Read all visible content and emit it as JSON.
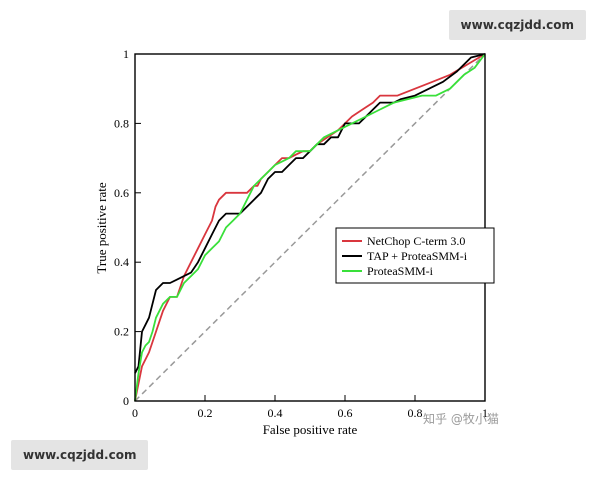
{
  "watermarks": {
    "top": "www.cqzjdd.com",
    "bottom": "www.cqzjdd.com"
  },
  "credit": "知乎 @牧小猫",
  "chart_data": {
    "type": "line",
    "xlabel": "False positive rate",
    "ylabel": "True positive rate",
    "xlim": [
      0,
      1
    ],
    "ylim": [
      0,
      1
    ],
    "xticks": [
      "0",
      "0.2",
      "0.4",
      "0.6",
      "0.8",
      "1"
    ],
    "yticks": [
      "0",
      "0.2",
      "0.4",
      "0.6",
      "0.8",
      "1"
    ],
    "grid": false,
    "legend_position": "center-right",
    "reference_line": {
      "style": "dashed",
      "color": "#999999",
      "from": [
        0,
        0
      ],
      "to": [
        1,
        1
      ]
    },
    "series": [
      {
        "name": "NetChop C-term 3.0",
        "color": "#d9363e",
        "x": [
          0,
          0.01,
          0.02,
          0.04,
          0.06,
          0.08,
          0.1,
          0.12,
          0.14,
          0.16,
          0.18,
          0.2,
          0.22,
          0.23,
          0.24,
          0.26,
          0.28,
          0.32,
          0.34,
          0.35,
          0.36,
          0.38,
          0.4,
          0.42,
          0.44,
          0.46,
          0.48,
          0.5,
          0.52,
          0.55,
          0.58,
          0.6,
          0.62,
          0.65,
          0.68,
          0.7,
          0.72,
          0.75,
          0.8,
          0.85,
          0.9,
          0.95,
          1
        ],
        "y": [
          0,
          0.05,
          0.1,
          0.14,
          0.2,
          0.26,
          0.3,
          0.3,
          0.36,
          0.4,
          0.44,
          0.48,
          0.52,
          0.56,
          0.58,
          0.6,
          0.6,
          0.6,
          0.62,
          0.62,
          0.64,
          0.66,
          0.68,
          0.7,
          0.7,
          0.71,
          0.72,
          0.72,
          0.74,
          0.76,
          0.78,
          0.8,
          0.82,
          0.84,
          0.86,
          0.88,
          0.88,
          0.88,
          0.9,
          0.92,
          0.94,
          0.97,
          1
        ]
      },
      {
        "name": "TAP + ProteaSMM-i",
        "color": "#000000",
        "x": [
          0,
          0.01,
          0.02,
          0.03,
          0.04,
          0.05,
          0.06,
          0.08,
          0.1,
          0.12,
          0.14,
          0.16,
          0.18,
          0.2,
          0.22,
          0.24,
          0.26,
          0.28,
          0.3,
          0.32,
          0.34,
          0.36,
          0.38,
          0.4,
          0.42,
          0.44,
          0.46,
          0.48,
          0.5,
          0.52,
          0.54,
          0.56,
          0.58,
          0.6,
          0.62,
          0.64,
          0.66,
          0.68,
          0.7,
          0.72,
          0.74,
          0.76,
          0.8,
          0.84,
          0.88,
          0.92,
          0.96,
          1
        ],
        "y": [
          0.08,
          0.1,
          0.2,
          0.22,
          0.24,
          0.28,
          0.32,
          0.34,
          0.34,
          0.35,
          0.36,
          0.37,
          0.4,
          0.44,
          0.48,
          0.52,
          0.54,
          0.54,
          0.54,
          0.56,
          0.58,
          0.6,
          0.64,
          0.66,
          0.66,
          0.68,
          0.7,
          0.7,
          0.72,
          0.74,
          0.74,
          0.76,
          0.76,
          0.8,
          0.8,
          0.8,
          0.82,
          0.84,
          0.86,
          0.86,
          0.86,
          0.87,
          0.88,
          0.9,
          0.92,
          0.95,
          0.99,
          1
        ]
      },
      {
        "name": "ProteaSMM-i",
        "color": "#39e03a",
        "x": [
          0,
          0.01,
          0.02,
          0.03,
          0.04,
          0.05,
          0.06,
          0.08,
          0.1,
          0.12,
          0.14,
          0.16,
          0.18,
          0.2,
          0.22,
          0.24,
          0.26,
          0.28,
          0.3,
          0.32,
          0.34,
          0.36,
          0.38,
          0.4,
          0.42,
          0.44,
          0.46,
          0.5,
          0.54,
          0.58,
          0.62,
          0.66,
          0.7,
          0.74,
          0.78,
          0.82,
          0.86,
          0.9,
          0.94,
          0.97,
          1
        ],
        "y": [
          0,
          0.08,
          0.14,
          0.16,
          0.17,
          0.2,
          0.24,
          0.28,
          0.3,
          0.3,
          0.34,
          0.36,
          0.38,
          0.42,
          0.44,
          0.46,
          0.5,
          0.52,
          0.54,
          0.58,
          0.62,
          0.64,
          0.66,
          0.68,
          0.69,
          0.7,
          0.72,
          0.72,
          0.76,
          0.78,
          0.8,
          0.82,
          0.84,
          0.86,
          0.87,
          0.88,
          0.88,
          0.9,
          0.94,
          0.96,
          1
        ]
      }
    ]
  }
}
